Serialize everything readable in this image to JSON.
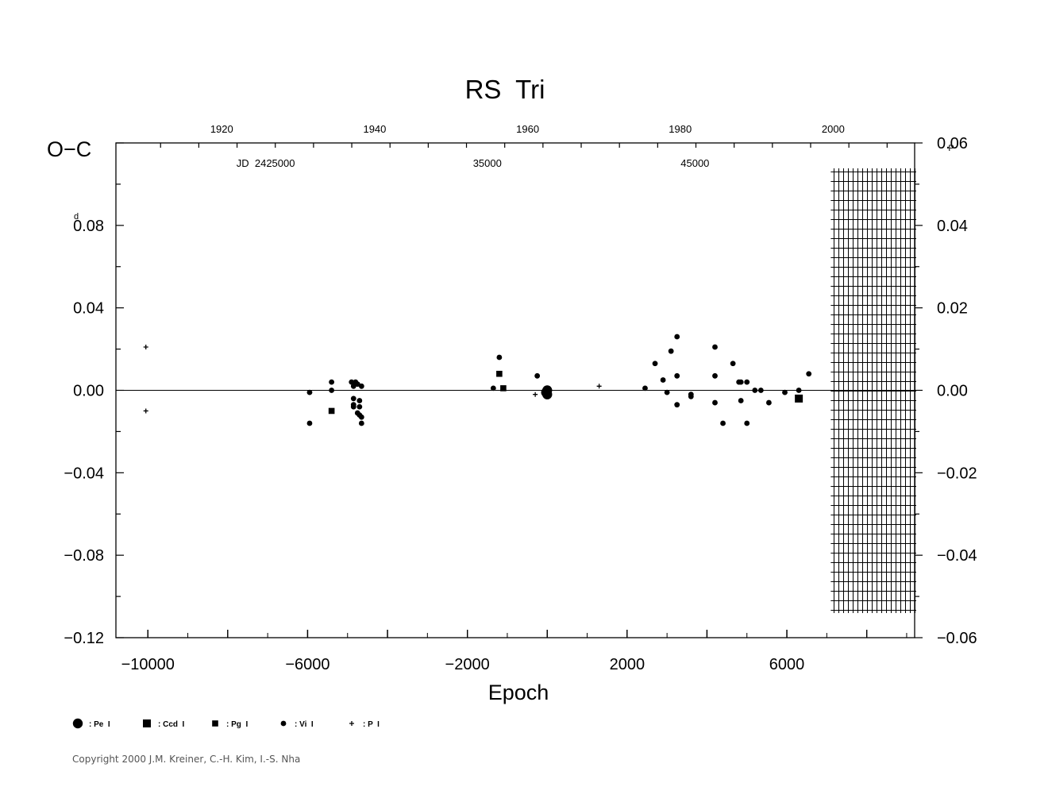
{
  "chart_data": {
    "type": "scatter",
    "title": "RS  Tri",
    "ylabel": "O−C",
    "ylabel_unit": "d",
    "y2_unit": "P",
    "xlabel": "Epoch",
    "xlim": [
      -10800,
      9200
    ],
    "ylim": [
      -0.12,
      0.12
    ],
    "y2lim": [
      -0.06,
      0.06
    ],
    "x_ticks": [
      -10000,
      -6000,
      -2000,
      2000,
      6000
    ],
    "x_tick_labels": [
      "−10000",
      "−6000",
      "−2000",
      "2000",
      "6000"
    ],
    "y_ticks": [
      0.08,
      0.04,
      0.0,
      -0.04,
      -0.08,
      -0.12
    ],
    "y_tick_labels": [
      "0.08",
      "0.04",
      "0.00",
      "−0.04",
      "−0.08",
      "−0.12"
    ],
    "y2_ticks": [
      0.06,
      0.04,
      0.02,
      0.0,
      -0.02,
      -0.04,
      -0.06
    ],
    "y2_tick_labels": [
      "0.06",
      "0.04",
      "0.02",
      "0.00",
      "−0.02",
      "−0.04",
      "−0.06"
    ],
    "top_year_ticks": [
      1920,
      1940,
      1960,
      1980,
      2000
    ],
    "top_year_labels": [
      "1920",
      "1940",
      "1960",
      "1980",
      "2000"
    ],
    "top_year_epochs": [
      -8150,
      -4320,
      -490,
      3330,
      7160
    ],
    "jd_labels": [
      {
        "text": "JD  2425000",
        "epoch": -7050
      },
      {
        "text": "35000",
        "epoch": -1500
      },
      {
        "text": "45000",
        "epoch": 3700
      }
    ],
    "zero_line": true,
    "hatched_future_region": [
      7100,
      9200
    ],
    "legend": [
      {
        "symbol": "circle-large",
        "label": ": Pe  I"
      },
      {
        "symbol": "square-large",
        "label": ": Ccd  I"
      },
      {
        "symbol": "square-small",
        "label": ": Pg  I"
      },
      {
        "symbol": "circle-small",
        "label": ": Vi  I"
      },
      {
        "symbol": "plus",
        "label": ": P  I"
      }
    ],
    "series": [
      {
        "name": "Pe I",
        "symbol": "circle-large",
        "points": [
          [
            0,
            0.0
          ],
          [
            0,
            -0.002
          ],
          [
            -30,
            -0.001
          ]
        ]
      },
      {
        "name": "Ccd I",
        "symbol": "square-large",
        "points": [
          [
            6300,
            -0.004
          ]
        ]
      },
      {
        "name": "Pg I",
        "symbol": "square-small",
        "points": [
          [
            -1200,
            0.008
          ],
          [
            -1100,
            0.001
          ],
          [
            -5400,
            -0.01
          ]
        ]
      },
      {
        "name": "Vi I",
        "symbol": "circle-small",
        "points": [
          [
            -5950,
            -0.001
          ],
          [
            -5950,
            -0.016
          ],
          [
            -5400,
            0.004
          ],
          [
            -5400,
            0.0
          ],
          [
            -4900,
            0.004
          ],
          [
            -4850,
            0.002
          ],
          [
            -4850,
            -0.004
          ],
          [
            -4850,
            -0.007
          ],
          [
            -4850,
            -0.008
          ],
          [
            -4750,
            0.003
          ],
          [
            -4700,
            -0.005
          ],
          [
            -4700,
            -0.008
          ],
          [
            -4700,
            -0.012
          ],
          [
            -4650,
            -0.013
          ],
          [
            -4650,
            -0.016
          ],
          [
            -4650,
            0.002
          ],
          [
            -4800,
            0.004
          ],
          [
            -4750,
            -0.011
          ],
          [
            -1350,
            0.001
          ],
          [
            -1200,
            0.016
          ],
          [
            -250,
            0.007
          ],
          [
            2450,
            0.001
          ],
          [
            2700,
            0.013
          ],
          [
            2900,
            0.005
          ],
          [
            3000,
            -0.001
          ],
          [
            3100,
            0.019
          ],
          [
            3250,
            0.026
          ],
          [
            3250,
            0.007
          ],
          [
            3250,
            -0.007
          ],
          [
            3600,
            -0.002
          ],
          [
            3600,
            -0.003
          ],
          [
            4200,
            0.021
          ],
          [
            4200,
            0.007
          ],
          [
            4200,
            -0.006
          ],
          [
            4400,
            -0.016
          ],
          [
            4650,
            0.013
          ],
          [
            4800,
            0.004
          ],
          [
            4850,
            -0.005
          ],
          [
            4850,
            0.004
          ],
          [
            5000,
            0.004
          ],
          [
            5000,
            -0.016
          ],
          [
            5200,
            0.0
          ],
          [
            5350,
            0.0
          ],
          [
            5550,
            -0.006
          ],
          [
            5950,
            -0.001
          ],
          [
            6300,
            0.0
          ],
          [
            6550,
            0.008
          ]
        ]
      },
      {
        "name": "P I",
        "symbol": "plus",
        "points": [
          [
            -10050,
            0.021
          ],
          [
            -10050,
            -0.01
          ],
          [
            -300,
            -0.002
          ],
          [
            1300,
            0.002
          ]
        ]
      }
    ]
  },
  "copyright": "Copyright 2000 J.M. Kreiner, C.-H. Kim, I.-S. Nha"
}
